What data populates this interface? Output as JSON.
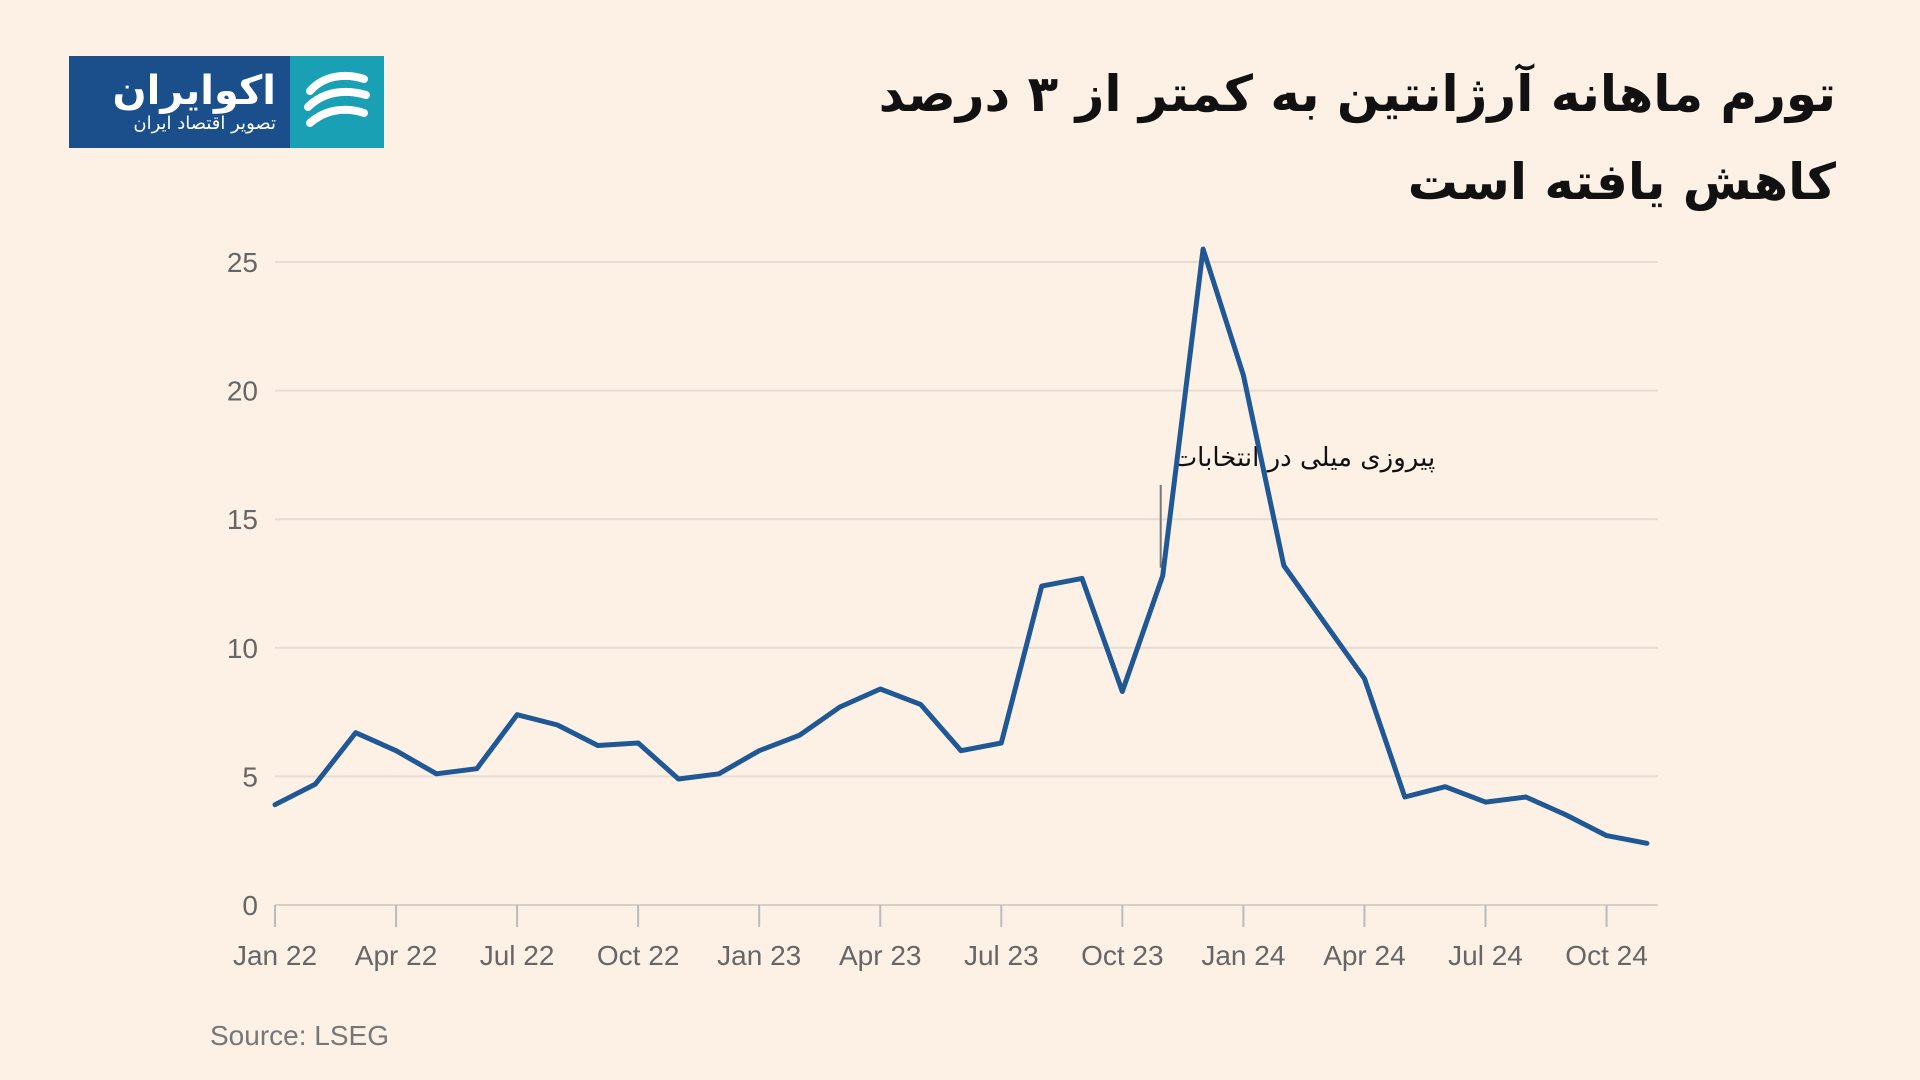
{
  "logo": {
    "name": "اکوایران",
    "tagline": "تصویر اقتصاد ایران"
  },
  "title": {
    "line1": "تورم ماهانه آرژانتین به کمتر از ۳ درصد",
    "line2": "کاهش یافته است"
  },
  "source": "Source: LSEG",
  "colors": {
    "background": "#fdf1e6",
    "line": "#1f5894",
    "grid": "#e5dcd3",
    "logo_blue": "#1b4f8c",
    "logo_teal": "#1aa0b4"
  },
  "chart_data": {
    "type": "line",
    "title": "تورم ماهانه آرژانتین به کمتر از ۳ درصد کاهش یافته است",
    "xlabel": "",
    "ylabel": "",
    "ylim": [
      0,
      25
    ],
    "yticks": [
      "0",
      "5",
      "10",
      "15",
      "20",
      "25"
    ],
    "grid": true,
    "x": [
      "Jan 22",
      "Feb 22",
      "Mar 22",
      "Apr 22",
      "May 22",
      "Jun 22",
      "Jul 22",
      "Aug 22",
      "Sep 22",
      "Oct 22",
      "Nov 22",
      "Dec 22",
      "Jan 23",
      "Feb 23",
      "Mar 23",
      "Apr 23",
      "May 23",
      "Jun 23",
      "Jul 23",
      "Aug 23",
      "Sep 23",
      "Oct 23",
      "Nov 23",
      "Dec 23",
      "Jan 24",
      "Feb 24",
      "Mar 24",
      "Apr 24",
      "May 24",
      "Jun 24",
      "Jul 24",
      "Aug 24",
      "Sep 24",
      "Oct 24",
      "Nov 24"
    ],
    "xticks": [
      "Jan 22",
      "Apr 22",
      "Jul 22",
      "Oct 22",
      "Jan 23",
      "Apr 23",
      "Jul 23",
      "Oct 23",
      "Jan 24",
      "Apr 24",
      "Jul 24",
      "Oct 24"
    ],
    "series": [
      {
        "values": [
          3.9,
          4.7,
          6.7,
          6.0,
          5.1,
          5.3,
          7.4,
          7.0,
          6.2,
          6.3,
          4.9,
          5.1,
          6.0,
          6.6,
          7.7,
          8.4,
          7.8,
          6.0,
          6.3,
          12.4,
          12.7,
          8.3,
          12.8,
          25.5,
          20.6,
          13.2,
          11.0,
          8.8,
          4.2,
          4.6,
          4.0,
          4.2,
          3.5,
          2.7,
          2.4
        ]
      }
    ],
    "annotations": [
      {
        "text": "پیروزی میلی در انتخابات",
        "x": "Nov 23"
      }
    ]
  }
}
